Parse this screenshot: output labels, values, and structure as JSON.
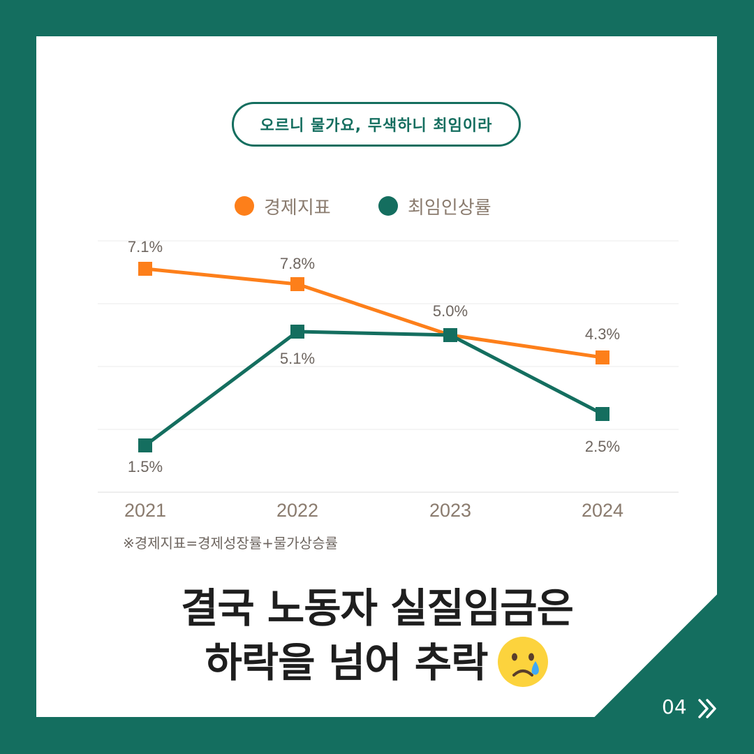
{
  "badge": "오르니 물가요, 무색하니 최임이라",
  "legend": [
    {
      "label": "경제지표",
      "color": "#fd7f1a"
    },
    {
      "label": "최임인상률",
      "color": "#146e5f"
    }
  ],
  "chart_data": {
    "type": "line",
    "categories": [
      "2021",
      "2022",
      "2023",
      "2024"
    ],
    "series": [
      {
        "name": "경제지표",
        "color": "#fd7f1a",
        "values": [
          7.1,
          7.8,
          5.0,
          4.3
        ]
      },
      {
        "name": "최임인상률",
        "color": "#146e5f",
        "values": [
          1.5,
          5.1,
          5.0,
          2.5
        ]
      }
    ],
    "grid": true,
    "legend_position": "top-center"
  },
  "footnote": "※경제지표=경제성장률+물가상승률",
  "headline": {
    "line1": "결국 노동자 실질임금은",
    "line2": "하락을 넘어 추락"
  },
  "page_number": "04",
  "colors": {
    "background": "#146e5f",
    "card": "#ffffff",
    "accent_orange": "#fd7f1a",
    "accent_green": "#146e5f"
  },
  "icons": {
    "next": "double-chevron-right-icon",
    "emoji": "crying-face-icon"
  }
}
